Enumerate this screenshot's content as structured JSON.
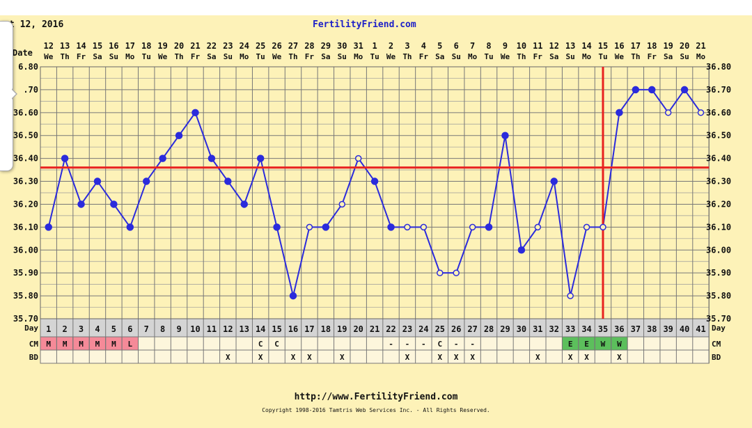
{
  "header": {
    "date_text": "t 12, 2016",
    "site": "FertilityFriend.com"
  },
  "footer": {
    "url": "http://www.FertilityFriend.com",
    "copyright": "Copyright 1998-2016 Tamtris Web Services Inc. - All Rights Reserved."
  },
  "chart_data": {
    "type": "line",
    "title": "FertilityFriend.com",
    "row_labels": {
      "date": "Date",
      "day": "Day",
      "cm": "CM",
      "bd": "BD"
    },
    "ylim": [
      35.7,
      36.8
    ],
    "y_ticks": [
      "35.70",
      "35.80",
      "35.90",
      "36.00",
      "36.10",
      "36.20",
      "36.30",
      "36.40",
      "36.50",
      "36.60",
      "36.70",
      "36.80"
    ],
    "left_y_ticks": [
      "35.70",
      "35.80",
      "35.90",
      "36.00",
      "36.10",
      "36.20",
      "36.30",
      "36.40",
      "36.50",
      "36.60",
      ".70",
      "6.80"
    ],
    "dates": [
      "12",
      "13",
      "14",
      "15",
      "16",
      "17",
      "18",
      "19",
      "20",
      "21",
      "22",
      "23",
      "24",
      "25",
      "26",
      "27",
      "28",
      "29",
      "30",
      "31",
      "1",
      "2",
      "3",
      "4",
      "5",
      "6",
      "7",
      "8",
      "9",
      "10",
      "11",
      "12",
      "13",
      "14",
      "15",
      "16",
      "17",
      "18",
      "19",
      "20",
      "21"
    ],
    "weekdays": [
      "We",
      "Th",
      "Fr",
      "Sa",
      "Su",
      "Mo",
      "Tu",
      "We",
      "Th",
      "Fr",
      "Sa",
      "Su",
      "Mo",
      "Tu",
      "We",
      "Th",
      "Fr",
      "Sa",
      "Su",
      "Mo",
      "Tu",
      "We",
      "Th",
      "Fr",
      "Sa",
      "Su",
      "Mo",
      "Tu",
      "We",
      "Th",
      "Fr",
      "Sa",
      "Su",
      "Mo",
      "Tu",
      "We",
      "Th",
      "Fr",
      "Sa",
      "Su",
      "Mo"
    ],
    "days": [
      1,
      2,
      3,
      4,
      5,
      6,
      7,
      8,
      9,
      10,
      11,
      12,
      13,
      14,
      15,
      16,
      17,
      18,
      19,
      20,
      21,
      22,
      23,
      24,
      25,
      26,
      27,
      28,
      29,
      30,
      31,
      32,
      33,
      34,
      35,
      36,
      37,
      38,
      39,
      40,
      41
    ],
    "series": [
      {
        "values": [
          36.1,
          36.4,
          36.2,
          36.3,
          36.2,
          36.1,
          36.3,
          36.4,
          36.5,
          36.6,
          36.4,
          36.3,
          36.2,
          36.4,
          36.1,
          35.8,
          36.1,
          36.1,
          36.2,
          36.4,
          36.3,
          36.1,
          36.1,
          36.1,
          35.9,
          35.9,
          36.1,
          36.1,
          36.5,
          36.0,
          36.1,
          36.3,
          35.8,
          36.1,
          36.1,
          36.6,
          36.7,
          36.7,
          36.6,
          36.7,
          36.6
        ],
        "marker": [
          "f",
          "f",
          "f",
          "f",
          "f",
          "f",
          "f",
          "f",
          "f",
          "f",
          "f",
          "f",
          "f",
          "f",
          "f",
          "f",
          "o",
          "f",
          "o",
          "o",
          "f",
          "f",
          "o",
          "o",
          "o",
          "o",
          "o",
          "f",
          "f",
          "f",
          "o",
          "f",
          "o",
          "o",
          "o",
          "f",
          "f",
          "f",
          "o",
          "f",
          "o"
        ],
        "color": "#2b2bdc"
      }
    ],
    "coverline": 36.36,
    "ovulation_day": 35,
    "line_color": "#e8211f",
    "cm": [
      "M",
      "M",
      "M",
      "M",
      "M",
      "L",
      "",
      "",
      "",
      "",
      "",
      "",
      "",
      "C",
      "C",
      "",
      "",
      "",
      "",
      "",
      "",
      "-",
      "-",
      "-",
      "C",
      "-",
      "-",
      "",
      "",
      "",
      "",
      "",
      "E",
      "E",
      "W",
      "W",
      "",
      "",
      "",
      "",
      ""
    ],
    "bd": [
      "",
      "",
      "",
      "",
      "",
      "",
      "",
      "",
      "",
      "",
      "",
      "X",
      "",
      "X",
      "",
      "X",
      "X",
      "",
      "X",
      "",
      "",
      "",
      "X",
      "",
      "X",
      "X",
      "X",
      "",
      "",
      "",
      "X",
      "",
      "X",
      "X",
      "",
      "X",
      "",
      "",
      "",
      "",
      ""
    ],
    "cm_colors": {
      "M": "#f58a98",
      "L": "#f58a98",
      "E": "#5cbf5c",
      "W": "#5cbf5c"
    },
    "grid": true
  }
}
